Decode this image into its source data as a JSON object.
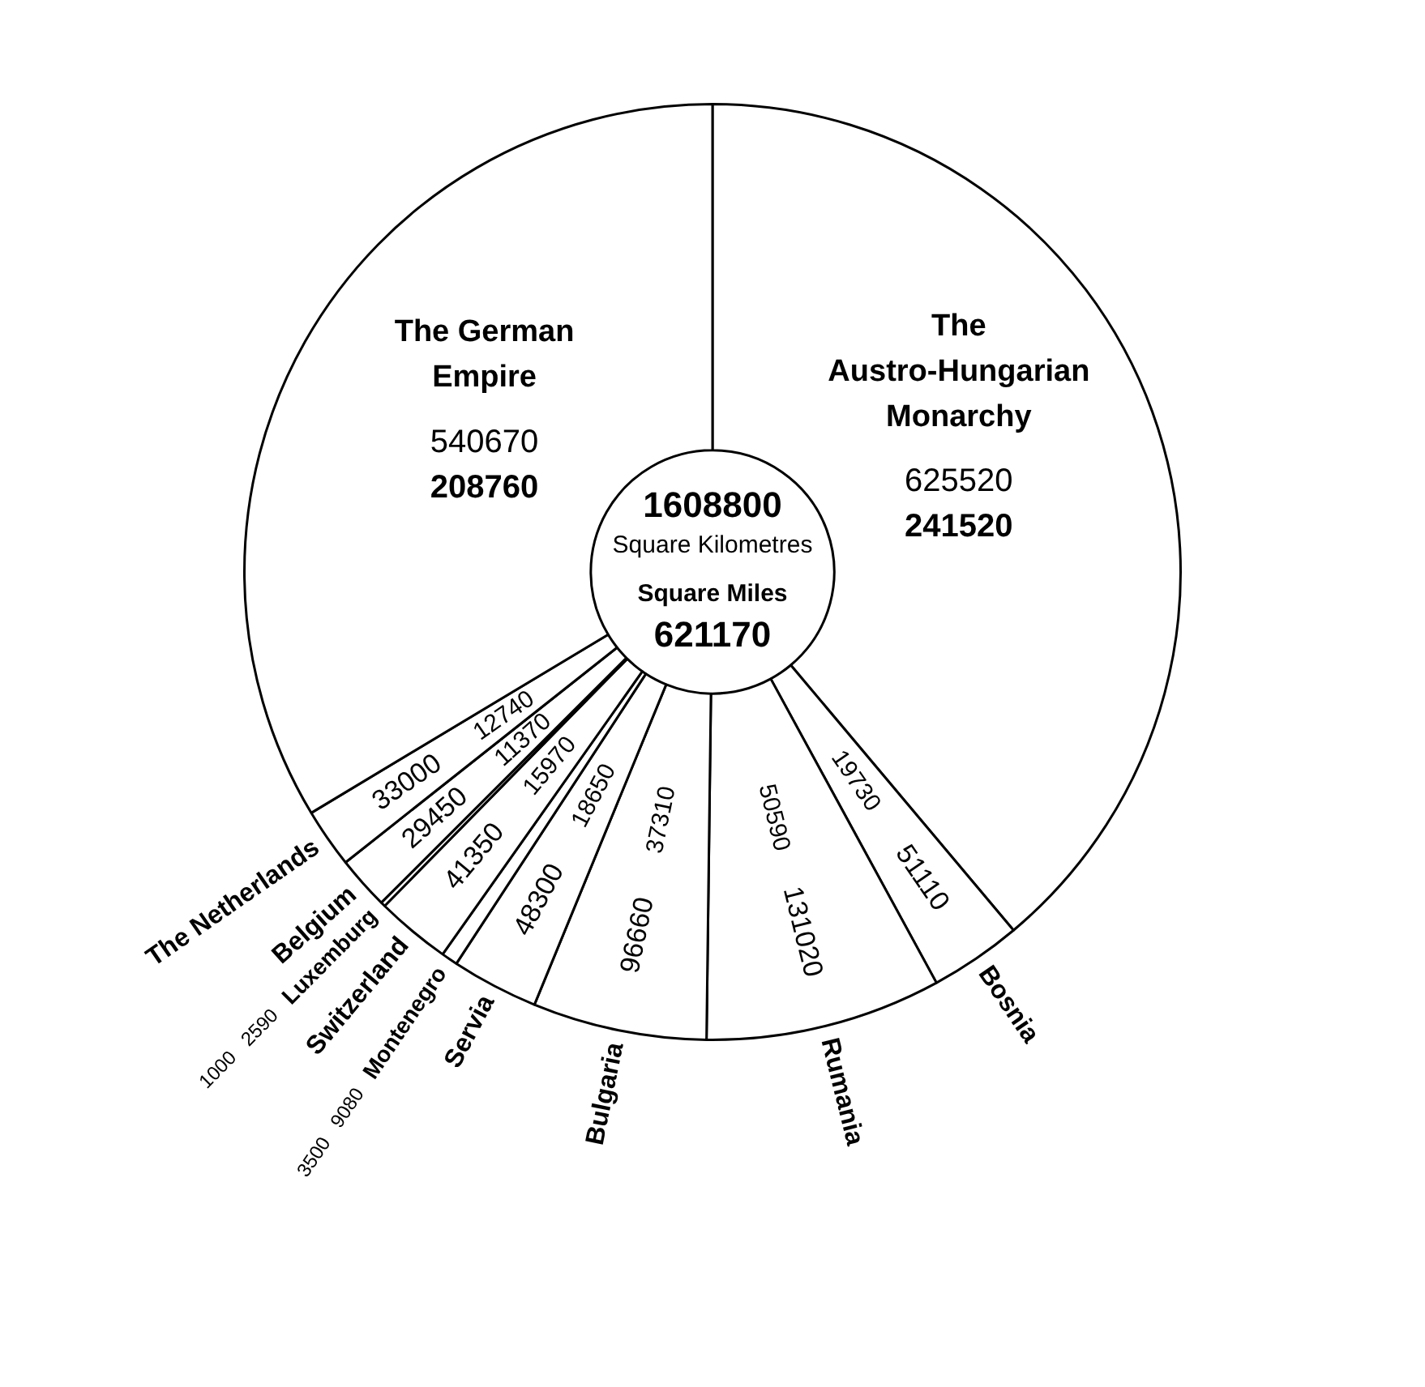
{
  "chart_data": {
    "type": "donut",
    "categories": [
      "The Austro-Hungarian Monarchy",
      "Bosnia",
      "Rumania",
      "Bulgaria",
      "Servia",
      "Montenegro",
      "Switzerland",
      "Luxemburg",
      "Belgium",
      "The Netherlands",
      "The German Empire"
    ],
    "values": [
      625520,
      51110,
      131020,
      96660,
      48300,
      9080,
      41350,
      2590,
      29450,
      33000,
      540670
    ],
    "colors": [
      "#ffffff",
      "#ffffff",
      "#ffffff",
      "#ffffff",
      "#ffffff",
      "#ffffff",
      "#ffffff",
      "#ffffff",
      "#ffffff",
      "#ffffff",
      "#ffffff"
    ],
    "data_labels": true,
    "legend": false,
    "annotations": [
      {
        "text": "241520",
        "x": "The Austro-Hungarian Monarchy"
      },
      {
        "text": "19730",
        "x": "Bosnia"
      },
      {
        "text": "50590",
        "x": "Rumania"
      },
      {
        "text": "37310",
        "x": "Bulgaria"
      },
      {
        "text": "18650",
        "x": "Servia"
      },
      {
        "text": "3500",
        "x": "Montenegro"
      },
      {
        "text": "15970",
        "x": "Switzerland"
      },
      {
        "text": "1000",
        "x": "Luxemburg"
      },
      {
        "text": "11370",
        "x": "Belgium"
      },
      {
        "text": "12740",
        "x": "The Netherlands"
      },
      {
        "text": "208760",
        "x": "The German Empire"
      },
      "1608800",
      "Square Kilometres",
      "Square Miles",
      "621170"
    ]
  }
}
